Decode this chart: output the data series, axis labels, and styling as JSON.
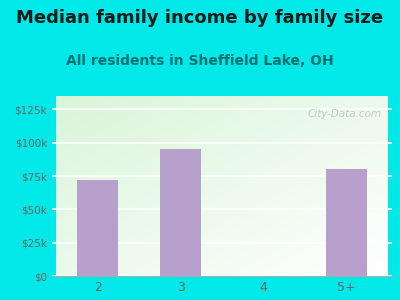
{
  "title": "Median family income by family size",
  "subtitle": "All residents in Sheffield Lake, OH",
  "categories": [
    "2",
    "3",
    "4",
    "5+"
  ],
  "values": [
    72000,
    95000,
    0,
    80000
  ],
  "bar_color": "#b8a0cc",
  "background_color": "#00e8e8",
  "yticks": [
    0,
    25000,
    50000,
    75000,
    100000,
    125000
  ],
  "ytick_labels": [
    "$0",
    "$25k",
    "$50k",
    "$75k",
    "$100k",
    "$125k"
  ],
  "ylim": [
    0,
    135000
  ],
  "title_fontsize": 13,
  "subtitle_fontsize": 10,
  "title_color": "#1a1a1a",
  "subtitle_color": "#007070",
  "tick_color": "#666666",
  "watermark": "City-Data.com"
}
